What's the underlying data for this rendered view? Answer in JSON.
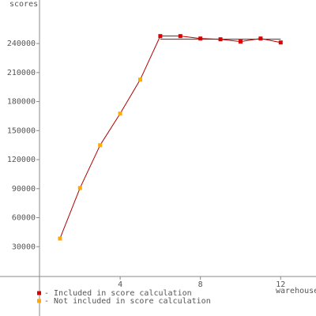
{
  "chart_data": {
    "type": "line",
    "y_label": "scores",
    "x_label": "warehouses",
    "x": [
      1,
      2,
      3,
      4,
      5,
      6,
      7,
      8,
      9,
      10,
      11,
      12
    ],
    "values": [
      38400,
      90700,
      134900,
      167600,
      202700,
      247700,
      247700,
      245200,
      244400,
      242000,
      245200,
      241100
    ],
    "included": [
      false,
      false,
      false,
      false,
      false,
      true,
      true,
      true,
      true,
      true,
      true,
      true
    ],
    "line_color": "#b00000",
    "legend": [
      {
        "name": "- Included in score calculation",
        "color": "#dd0000"
      },
      {
        "name": "- Not included in score calculation",
        "color": "#ffaa00"
      }
    ],
    "score_line": {
      "x": [
        6,
        12
      ],
      "value": 244500
    },
    "xlim": [
      0,
      13.8
    ],
    "ylim": [
      0,
      285000
    ],
    "xticks": [
      4,
      8,
      12
    ],
    "yticks": [
      30000,
      60000,
      90000,
      120000,
      150000,
      180000,
      210000,
      240000
    ]
  }
}
